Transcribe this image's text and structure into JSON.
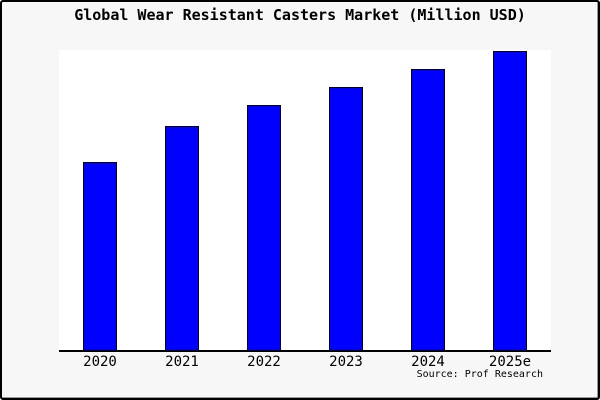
{
  "chart_data": {
    "type": "bar",
    "title": "Global Wear Resistant Casters Market (Million USD)",
    "categories": [
      "2020",
      "2021",
      "2022",
      "2023",
      "2024",
      "2025e"
    ],
    "values": [
      63,
      75,
      82,
      88,
      94,
      100
    ],
    "values_note": "relative scale estimated from bar pixel heights; chart shows no y-axis ticks or data labels",
    "xlabel": "",
    "ylabel": "",
    "ylim": [
      0,
      100.5
    ],
    "grid": false,
    "legend": false,
    "y_axis_hidden": true,
    "bar_color": "#0000ff",
    "bar_edge_color": "#000000"
  },
  "source_note": "Source: Prof Research",
  "colors": {
    "background": "#f7f7f7",
    "plot_background": "#ffffff",
    "border": "#000000",
    "axis": "#000000",
    "bar_fill": "#0000ff",
    "bar_edge": "#000000",
    "text": "#000000"
  }
}
